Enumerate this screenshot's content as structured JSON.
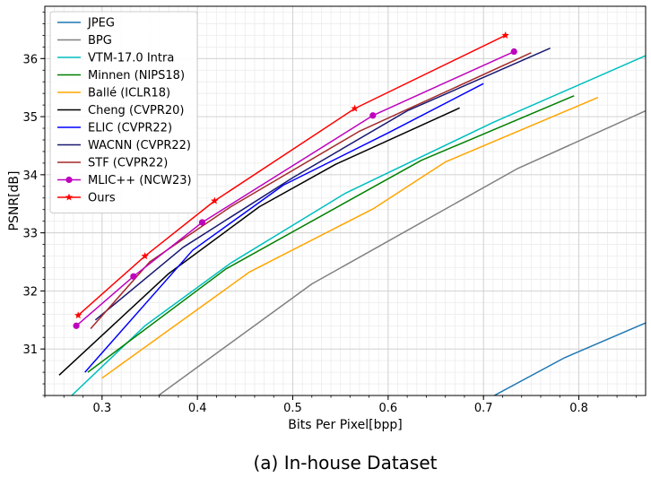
{
  "caption": "(a) In-house Dataset",
  "chart_data": {
    "type": "line",
    "xlabel": "Bits Per Pixel[bpp]",
    "ylabel": "PSNR[dB]",
    "xlim": [
      0.24,
      0.87
    ],
    "ylim": [
      30.2,
      36.9
    ],
    "xticks": [
      0.3,
      0.4,
      0.5,
      0.6,
      0.7,
      0.8
    ],
    "xtick_labels": [
      "0.3",
      "0.4",
      "0.5",
      "0.6",
      "0.7",
      "0.8"
    ],
    "yticks": [
      31,
      32,
      33,
      34,
      35,
      36
    ],
    "ytick_labels": [
      "31",
      "32",
      "33",
      "34",
      "35",
      "36"
    ],
    "grid": true,
    "minor_grid": true,
    "legend_position": "upper-left",
    "series": [
      {
        "name": "JPEG",
        "color": "#1f77b4",
        "marker": "none",
        "points": [
          [
            0.7,
            30.1
          ],
          [
            0.785,
            30.85
          ],
          [
            0.87,
            31.45
          ]
        ]
      },
      {
        "name": "BPG",
        "color": "#808080",
        "marker": "none",
        "points": [
          [
            0.355,
            30.15
          ],
          [
            0.52,
            32.12
          ],
          [
            0.735,
            34.1
          ],
          [
            0.87,
            35.1
          ]
        ]
      },
      {
        "name": "VTM-17.0 Intra",
        "color": "#00bfbf",
        "marker": "none",
        "points": [
          [
            0.265,
            30.15
          ],
          [
            0.345,
            31.4
          ],
          [
            0.435,
            32.48
          ],
          [
            0.555,
            33.68
          ],
          [
            0.71,
            34.9
          ],
          [
            0.87,
            36.05
          ]
        ]
      },
      {
        "name": "Minnen (NIPS18)",
        "color": "#008000",
        "marker": "none",
        "points": [
          [
            0.285,
            30.6
          ],
          [
            0.43,
            32.38
          ],
          [
            0.635,
            34.25
          ],
          [
            0.795,
            35.36
          ]
        ]
      },
      {
        "name": "Ballé (ICLR18)",
        "color": "#ffa500",
        "marker": "none",
        "points": [
          [
            0.3,
            30.5
          ],
          [
            0.455,
            32.33
          ],
          [
            0.585,
            33.42
          ],
          [
            0.66,
            34.22
          ],
          [
            0.82,
            35.33
          ]
        ]
      },
      {
        "name": "Cheng (CVPR20)",
        "color": "#000000",
        "marker": "none",
        "points": [
          [
            0.255,
            30.55
          ],
          [
            0.37,
            32.3
          ],
          [
            0.465,
            33.45
          ],
          [
            0.545,
            34.18
          ],
          [
            0.675,
            35.15
          ]
        ]
      },
      {
        "name": "ELIC (CVPR22)",
        "color": "#0000ff",
        "marker": "none",
        "points": [
          [
            0.282,
            30.6
          ],
          [
            0.395,
            32.7
          ],
          [
            0.49,
            33.82
          ],
          [
            0.6,
            34.72
          ],
          [
            0.7,
            35.57
          ]
        ]
      },
      {
        "name": "WACNN (CVPR22)",
        "color": "#191970",
        "marker": "none",
        "points": [
          [
            0.293,
            31.5
          ],
          [
            0.385,
            32.75
          ],
          [
            0.5,
            33.95
          ],
          [
            0.62,
            35.1
          ],
          [
            0.77,
            36.18
          ]
        ]
      },
      {
        "name": "STF (CVPR22)",
        "color": "#a52a2a",
        "marker": "none",
        "points": [
          [
            0.288,
            31.35
          ],
          [
            0.35,
            32.5
          ],
          [
            0.435,
            33.45
          ],
          [
            0.57,
            34.75
          ],
          [
            0.75,
            36.1
          ]
        ]
      },
      {
        "name": "MLIC++ (NCW23)",
        "color": "#bf00bf",
        "marker": "circle",
        "points": [
          [
            0.273,
            31.4
          ],
          [
            0.333,
            32.25
          ],
          [
            0.405,
            33.18
          ],
          [
            0.584,
            35.02
          ],
          [
            0.732,
            36.12
          ]
        ]
      },
      {
        "name": "Ours",
        "color": "#ff0000",
        "marker": "star",
        "points": [
          [
            0.275,
            31.58
          ],
          [
            0.345,
            32.6
          ],
          [
            0.418,
            33.55
          ],
          [
            0.565,
            35.14
          ],
          [
            0.723,
            36.4
          ]
        ]
      }
    ]
  }
}
